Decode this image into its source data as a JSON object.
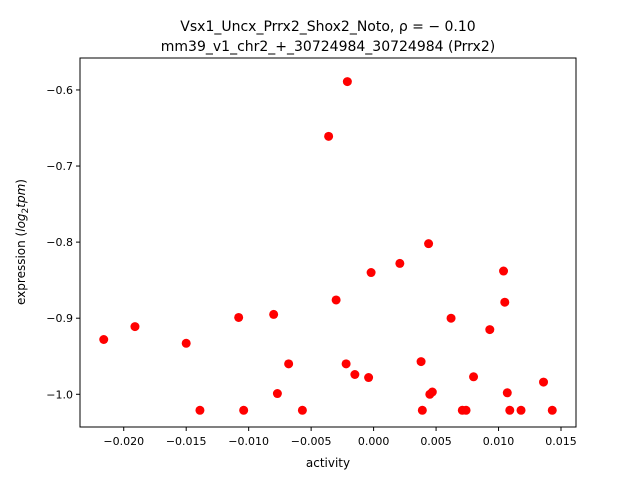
{
  "chart_data": {
    "type": "scatter",
    "title_line1": "Vsx1_Uncx_Prrx2_Shox2_Noto, ρ = − 0.10",
    "title_line2": "mm39_v1_chr2_+_30724984_30724984 (Prrx2)",
    "xlabel": "activity",
    "ylabel_main": "expression (",
    "ylabel_log": "log",
    "ylabel_sub": "2",
    "ylabel_tpm": "tpm",
    "ylabel_close": ")",
    "xlim": [
      -0.0235,
      0.0162
    ],
    "ylim": [
      -1.043,
      -0.558
    ],
    "grid": false,
    "marker_color": "#ff0000",
    "x_ticks": [
      {
        "value": -0.02,
        "label": "−0.020"
      },
      {
        "value": -0.015,
        "label": "−0.015"
      },
      {
        "value": -0.01,
        "label": "−0.010"
      },
      {
        "value": -0.005,
        "label": "−0.005"
      },
      {
        "value": 0.0,
        "label": "0.000"
      },
      {
        "value": 0.005,
        "label": "0.005"
      },
      {
        "value": 0.01,
        "label": "0.010"
      },
      {
        "value": 0.015,
        "label": "0.015"
      }
    ],
    "y_ticks": [
      {
        "value": -0.6,
        "label": "−0.6"
      },
      {
        "value": -0.7,
        "label": "−0.7"
      },
      {
        "value": -0.8,
        "label": "−0.8"
      },
      {
        "value": -0.9,
        "label": "−0.9"
      },
      {
        "value": -1.0,
        "label": "−1.0"
      }
    ],
    "points": [
      {
        "x": -0.0216,
        "y": -0.928
      },
      {
        "x": -0.0191,
        "y": -0.911
      },
      {
        "x": -0.015,
        "y": -0.933
      },
      {
        "x": -0.0139,
        "y": -1.021
      },
      {
        "x": -0.0108,
        "y": -0.899
      },
      {
        "x": -0.0104,
        "y": -1.021
      },
      {
        "x": -0.008,
        "y": -0.895
      },
      {
        "x": -0.0077,
        "y": -0.999
      },
      {
        "x": -0.0068,
        "y": -0.96
      },
      {
        "x": -0.0057,
        "y": -1.021
      },
      {
        "x": -0.0036,
        "y": -0.661
      },
      {
        "x": -0.003,
        "y": -0.876
      },
      {
        "x": -0.0021,
        "y": -0.589
      },
      {
        "x": -0.0022,
        "y": -0.96
      },
      {
        "x": -0.0015,
        "y": -0.974
      },
      {
        "x": -0.0004,
        "y": -0.978
      },
      {
        "x": -0.0002,
        "y": -0.84
      },
      {
        "x": 0.0021,
        "y": -0.828
      },
      {
        "x": 0.0038,
        "y": -0.957
      },
      {
        "x": 0.0039,
        "y": -1.021
      },
      {
        "x": 0.0044,
        "y": -0.802
      },
      {
        "x": 0.0045,
        "y": -1.0
      },
      {
        "x": 0.0047,
        "y": -0.997
      },
      {
        "x": 0.0062,
        "y": -0.9
      },
      {
        "x": 0.0071,
        "y": -1.021
      },
      {
        "x": 0.0074,
        "y": -1.021
      },
      {
        "x": 0.008,
        "y": -0.977
      },
      {
        "x": 0.0093,
        "y": -0.915
      },
      {
        "x": 0.0104,
        "y": -0.838
      },
      {
        "x": 0.0105,
        "y": -0.879
      },
      {
        "x": 0.0107,
        "y": -0.998
      },
      {
        "x": 0.0109,
        "y": -1.021
      },
      {
        "x": 0.0118,
        "y": -1.021
      },
      {
        "x": 0.0136,
        "y": -0.984
      },
      {
        "x": 0.0143,
        "y": -1.021
      }
    ]
  }
}
